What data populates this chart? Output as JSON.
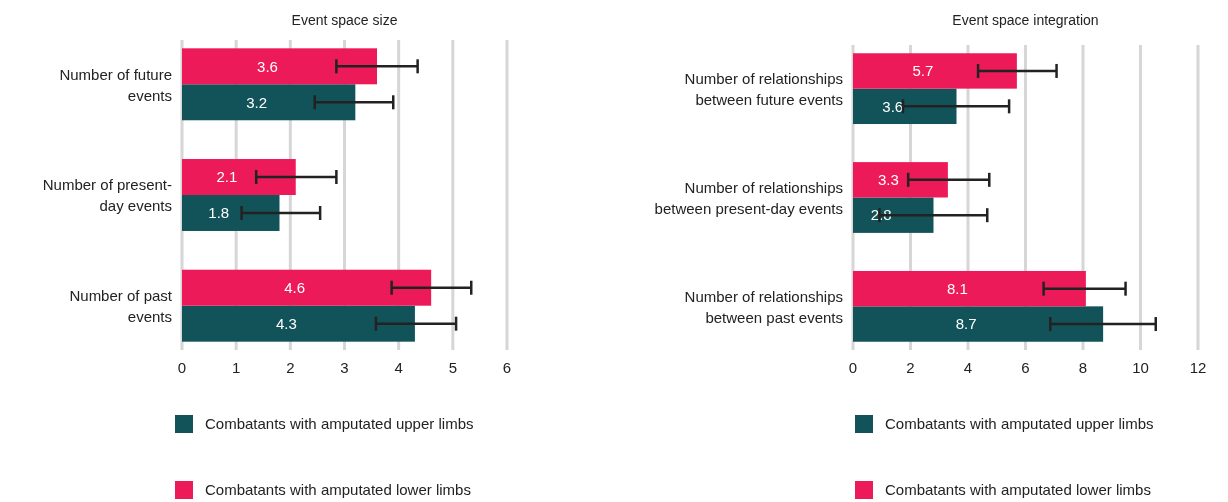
{
  "chart_data": [
    {
      "type": "bar",
      "orientation": "horizontal",
      "title": "Event space size",
      "categories": [
        "Number of future\nevents",
        "Number of present-\nday events",
        "Number of past\nevents"
      ],
      "series": [
        {
          "name": "Combatants with amputated upper limbs",
          "color": "#12535a",
          "values": [
            3.2,
            1.8,
            4.3
          ],
          "errors": [
            [
              2.45,
              3.9
            ],
            [
              1.1,
              2.55
            ],
            [
              3.58,
              5.06
            ]
          ]
        },
        {
          "name": "Combatants with amputated lower limbs",
          "color": "#ec1a58",
          "values": [
            3.6,
            2.1,
            4.6
          ],
          "errors": [
            [
              2.85,
              4.35
            ],
            [
              1.37,
              2.85
            ],
            [
              3.87,
              5.34
            ]
          ]
        }
      ],
      "xlim": [
        0,
        6
      ],
      "xticks": [
        0,
        1,
        2,
        3,
        4,
        5,
        6
      ],
      "grid": "x",
      "legend": "bottom",
      "data_labels": true
    },
    {
      "type": "bar",
      "orientation": "horizontal",
      "title": "Event space integration",
      "categories": [
        "Number of relationships\nbetween future events",
        "Number of relationships\nbetween present-day events",
        "Number of relationships\nbetween past events"
      ],
      "series": [
        {
          "name": "Combatants with amputated upper limbs",
          "color": "#12535a",
          "values": [
            3.6,
            2.8,
            8.7
          ],
          "errors": [
            [
              1.74,
              5.43
            ],
            [
              0.92,
              4.67
            ],
            [
              6.86,
              10.53
            ]
          ]
        },
        {
          "name": "Combatants with amputated lower limbs",
          "color": "#ec1a58",
          "values": [
            5.7,
            3.3,
            8.1
          ],
          "errors": [
            [
              4.35,
              7.08
            ],
            [
              1.92,
              4.74
            ],
            [
              6.63,
              9.48
            ]
          ]
        }
      ],
      "xlim": [
        0,
        12
      ],
      "xticks": [
        0,
        2,
        4,
        6,
        8,
        10,
        12
      ],
      "grid": "x",
      "legend": "bottom",
      "data_labels": true
    }
  ]
}
